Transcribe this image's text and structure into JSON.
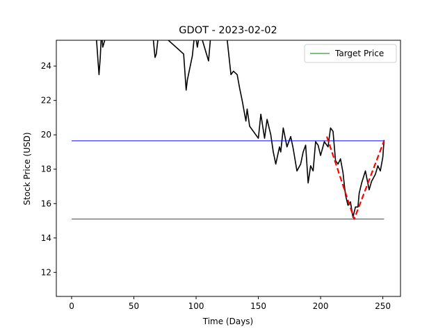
{
  "chart_data": {
    "type": "line",
    "title": "GDOT - 2023-02-02",
    "xlabel": "Time (Days)",
    "ylabel": "Stock Price (USD)",
    "xlim": [
      -12.3,
      264.2
    ],
    "ylim": [
      10.6,
      25.5
    ],
    "xticks": [
      0,
      50,
      100,
      150,
      200,
      250
    ],
    "yticks": [
      12,
      14,
      16,
      18,
      20,
      22,
      24
    ],
    "legend": "upper right",
    "series": [
      {
        "color": "#000000",
        "width": 1.6,
        "x": [
          0,
          20,
          22,
          23,
          24,
          25,
          27,
          65,
          67,
          68,
          70,
          90,
          92,
          93,
          97,
          99,
          101,
          103,
          110,
          112,
          125,
          128,
          130,
          133,
          135,
          137,
          140,
          141,
          143,
          147,
          150,
          152,
          155,
          157,
          160,
          162,
          164,
          167,
          168,
          170,
          173,
          176,
          178,
          181,
          184,
          186,
          188,
          190,
          192,
          194,
          196,
          198,
          200,
          203,
          206,
          208,
          210,
          212,
          214,
          216,
          218,
          220,
          222,
          224,
          226,
          228,
          230,
          231,
          233,
          236,
          239,
          241,
          244,
          246,
          248,
          250,
          251
        ],
        "values": [
          27,
          25.5,
          23.5,
          24.5,
          26,
          25.1,
          25.6,
          26,
          24.5,
          24.7,
          26,
          24.7,
          22.6,
          23.2,
          24.6,
          26,
          25.1,
          26,
          24.3,
          26,
          25.5,
          23.5,
          23.7,
          23.5,
          22.7,
          22,
          20.8,
          21.5,
          20.5,
          20.1,
          19.8,
          21.2,
          19.8,
          20.9,
          20,
          19,
          18.3,
          19.3,
          19.0,
          20.4,
          19.3,
          19.9,
          19.2,
          17.9,
          18.3,
          19.0,
          19.4,
          17.2,
          18.2,
          17.9,
          19.6,
          19.4,
          18.8,
          19.6,
          19.3,
          20.4,
          20.2,
          18.5,
          18.3,
          18.6,
          17.8,
          16.5,
          15.9,
          16.1,
          15.2,
          15.8,
          15.8,
          16.6,
          17.2,
          17.9,
          16.8,
          17.3,
          17.7,
          18.2,
          17.9,
          18.7,
          19.7
        ]
      },
      {
        "name": "Target Price",
        "color": "#008000",
        "width": 1,
        "x": [
          0,
          251
        ],
        "values": [
          15.1,
          15.1
        ]
      },
      {
        "color": "#0000ff",
        "width": 1,
        "x": [
          0,
          251
        ],
        "values": [
          19.65,
          19.65
        ]
      },
      {
        "color": "#ff0000",
        "width": 2.2,
        "dashed": true,
        "x": [
          205,
          227,
          251
        ],
        "values": [
          19.9,
          15.1,
          19.65
        ]
      }
    ]
  }
}
